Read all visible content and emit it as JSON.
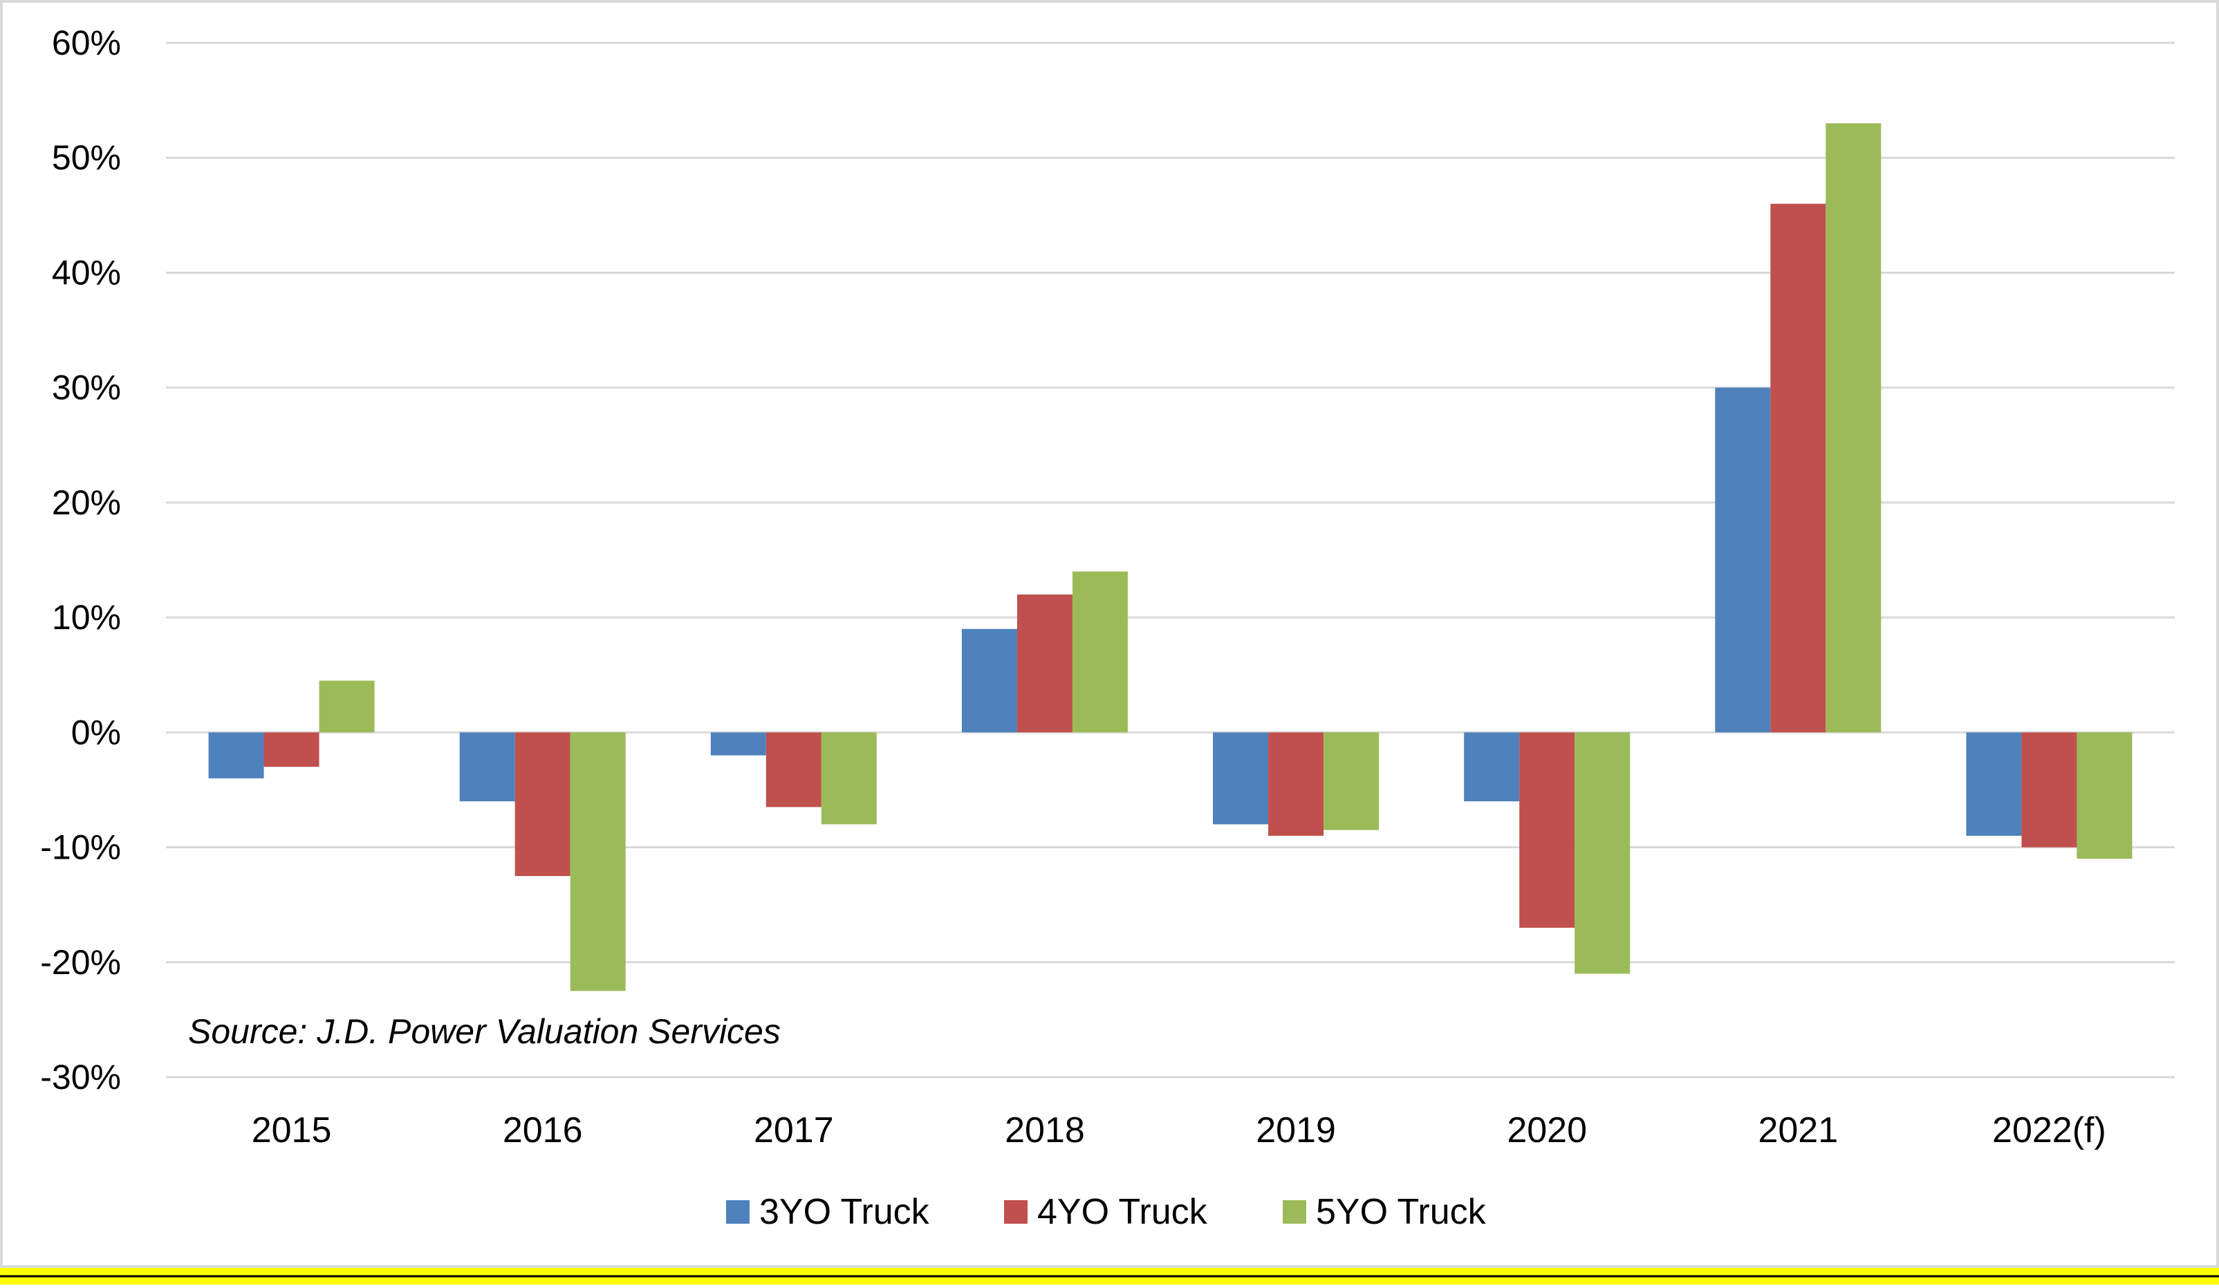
{
  "chart_data": {
    "type": "bar",
    "categories": [
      "2015",
      "2016",
      "2017",
      "2018",
      "2019",
      "2020",
      "2021",
      "2022(f)"
    ],
    "series": [
      {
        "name": "3YO Truck",
        "color": "#4F81BD",
        "values": [
          -4,
          -6,
          -2,
          9,
          -8,
          -6,
          30,
          -9
        ]
      },
      {
        "name": "4YO Truck",
        "color": "#C0504D",
        "values": [
          -3,
          -12.5,
          -6.5,
          12,
          -9,
          -17,
          46,
          -10
        ]
      },
      {
        "name": "5YO Truck",
        "color": "#9BBB59",
        "values": [
          4.5,
          -22.5,
          -8,
          14,
          -8.5,
          -21,
          53,
          -11
        ]
      }
    ],
    "ylim": [
      -30,
      60
    ],
    "yticks": [
      "-30%",
      "-20%",
      "-10%",
      "0%",
      "10%",
      "20%",
      "30%",
      "40%",
      "50%",
      "60%"
    ],
    "grid": true,
    "legend": "bottom-center",
    "annotation": "Source: J.D. Power Valuation Services",
    "colors": {
      "border": "#d9d9d9",
      "bottom_band": "#ffff00",
      "gridline": "#d9d9d9"
    }
  }
}
